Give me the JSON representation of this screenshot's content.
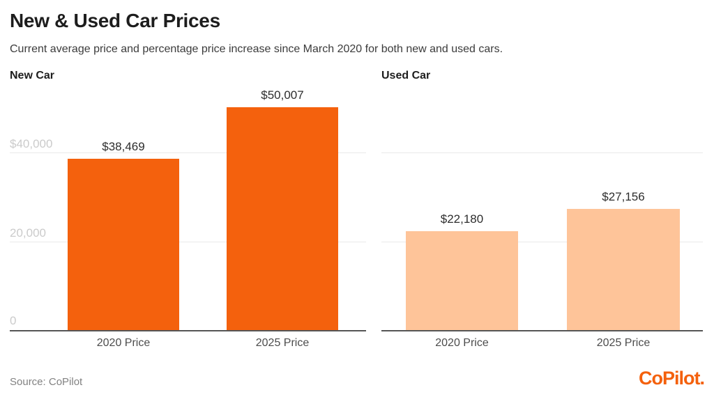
{
  "header": {
    "title": "New & Used Car Prices",
    "subtitle": "Current average price and percentage price increase since March 2020 for both new and used cars."
  },
  "footer": {
    "source": "Source: CoPilot",
    "logo_text": "CoPilot."
  },
  "colors": {
    "new_car_bar": "#f4610d",
    "used_car_bar": "#fec499",
    "logo_orange": "#f4610d",
    "gridline": "#e9e9e9",
    "axis_line": "#555555",
    "ytick_label": "#cbcbcb"
  },
  "chart_data": [
    {
      "type": "bar",
      "title": "New Car",
      "categories": [
        "2020 Price",
        "2025 Price"
      ],
      "values": [
        38469,
        50007
      ],
      "value_labels": [
        "$38,469",
        "$50,007"
      ],
      "bar_color": "#f4610d",
      "xlabel": "",
      "ylabel": "",
      "ylim": [
        0,
        52000
      ],
      "yticks": [
        0,
        20000,
        40000
      ],
      "yticklabels": [
        "0",
        "20,000",
        "$40,000"
      ],
      "grid": "horizontal",
      "legend": "none"
    },
    {
      "type": "bar",
      "title": "Used Car",
      "categories": [
        "2020 Price",
        "2025 Price"
      ],
      "values": [
        22180,
        27156
      ],
      "value_labels": [
        "$22,180",
        "$27,156"
      ],
      "bar_color": "#fec499",
      "xlabel": "",
      "ylabel": "",
      "ylim": [
        0,
        52000
      ],
      "yticks": [
        0,
        20000,
        40000
      ],
      "yticklabels": [],
      "grid": "horizontal",
      "legend": "none"
    }
  ]
}
